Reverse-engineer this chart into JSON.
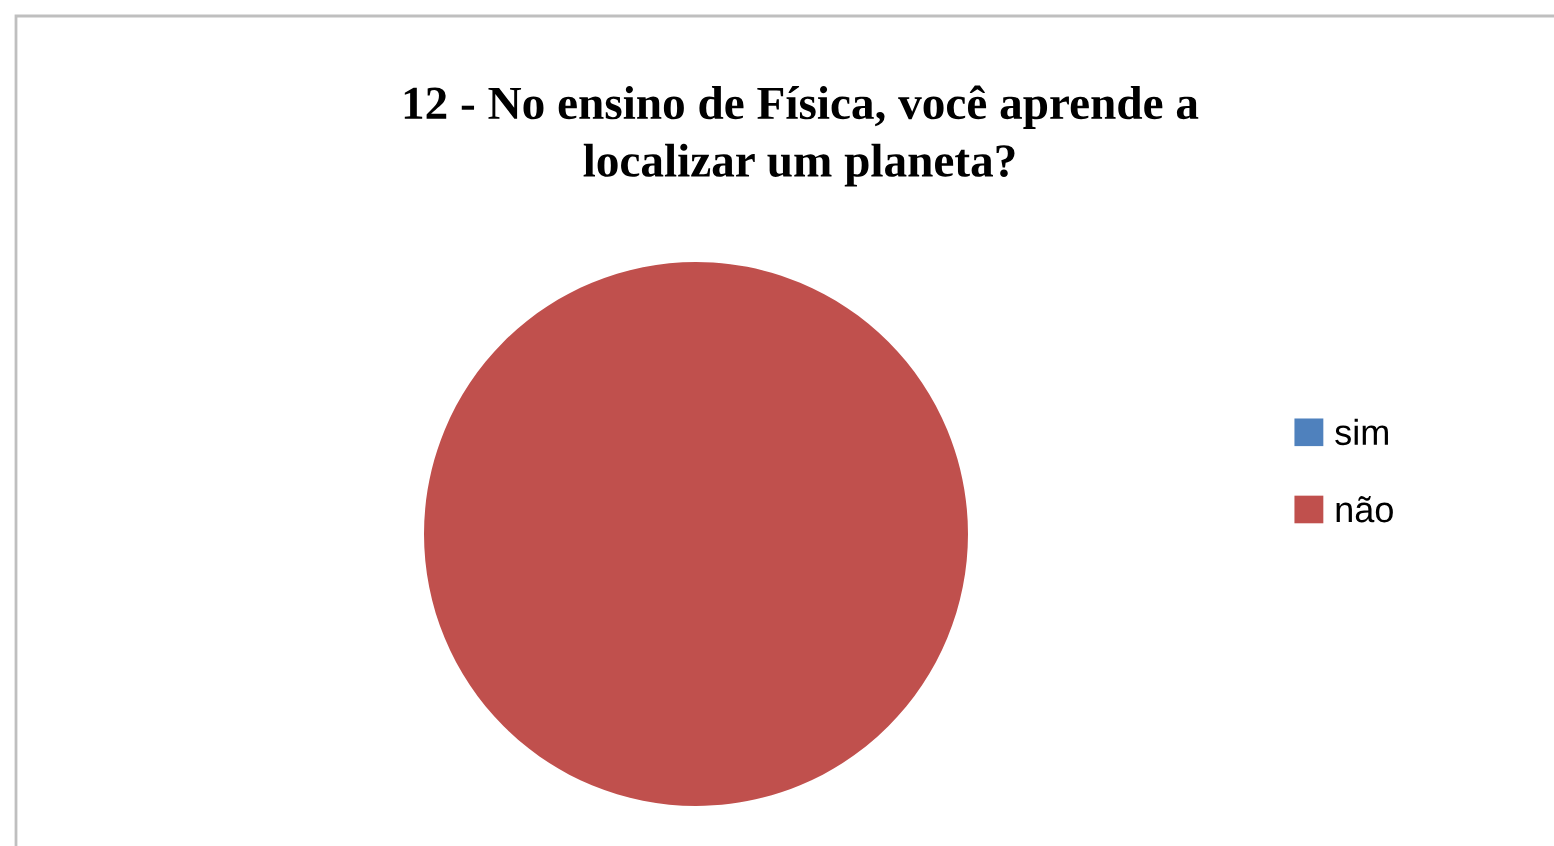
{
  "chart_data": {
    "type": "pie",
    "title": "12 - No ensino de Física, você aprende a\nlocalizar um planeta?",
    "categories": [
      "sim",
      "não"
    ],
    "values": [
      0,
      100
    ],
    "colors": [
      "#4f81bd",
      "#c0504d"
    ],
    "legend": "right"
  }
}
